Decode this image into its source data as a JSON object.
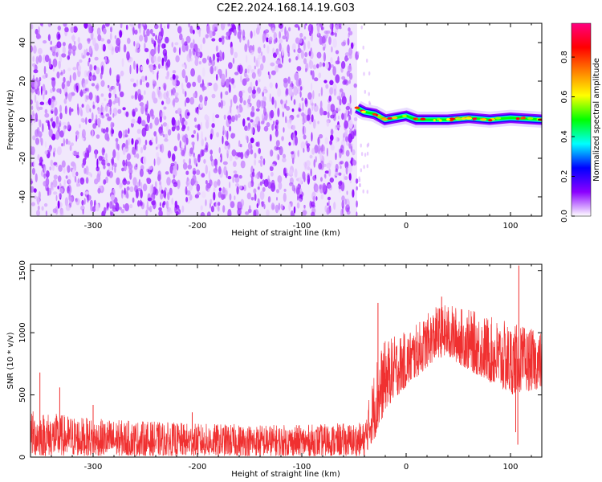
{
  "title": "C2E2.2024.168.14.19.G03",
  "chart_data": [
    {
      "type": "heatmap",
      "xlabel": "Height of straight line (km)",
      "ylabel": "Frequency (Hz)",
      "xlim": [
        -360,
        130
      ],
      "ylim": [
        -50,
        50
      ],
      "x_ticks": [
        -300,
        -200,
        -100,
        0,
        100
      ],
      "y_ticks": [
        -40,
        -20,
        0,
        20,
        40
      ],
      "noise_region_x": [
        -360,
        -47
      ],
      "signal_region_x": [
        -47,
        130
      ],
      "colorbar": {
        "label": "Normalized spectral amplitude",
        "range": [
          0.0,
          0.97
        ],
        "ticks": [
          0.0,
          0.2,
          0.4,
          0.6,
          0.8
        ],
        "colors": [
          "#ffffff",
          "#8b00ff",
          "#0000ff",
          "#00ffff",
          "#00ff00",
          "#ffff00",
          "#ff8000",
          "#ff0000",
          "#ff0080"
        ]
      },
      "signal_trace": {
        "x": [
          -47,
          -40,
          -30,
          -20,
          -10,
          0,
          10,
          20,
          40,
          60,
          80,
          100,
          130
        ],
        "frequency": [
          6,
          4,
          3,
          0,
          1,
          2,
          0,
          0,
          0,
          1,
          0,
          1,
          0
        ]
      }
    },
    {
      "type": "line",
      "xlabel": "Height of straight line (km)",
      "ylabel": "SNR (10 * v/v)",
      "xlim": [
        -360,
        130
      ],
      "ylim": [
        0,
        1550
      ],
      "x_ticks": [
        -300,
        -200,
        -100,
        0,
        100
      ],
      "y_ticks": [
        0,
        500,
        1000,
        1500
      ],
      "color": "#f03030",
      "series": [
        {
          "envelope_x": [
            -360,
            -300,
            -200,
            -100,
            -40,
            -28,
            -20,
            -10,
            0,
            10,
            20,
            30,
            40,
            60,
            80,
            100,
            110,
            130
          ],
          "low": [
            10,
            10,
            10,
            10,
            10,
            180,
            380,
            480,
            560,
            640,
            720,
            800,
            800,
            700,
            600,
            500,
            520,
            550
          ],
          "high": [
            380,
            310,
            270,
            260,
            280,
            820,
            940,
            980,
            1010,
            1070,
            1150,
            1220,
            1230,
            1190,
            1130,
            1080,
            1060,
            1000
          ],
          "spikes": [
            {
              "x": -351,
              "y": 680
            },
            {
              "x": -332,
              "y": 560
            },
            {
              "x": -300,
              "y": 420
            },
            {
              "x": -205,
              "y": 360
            },
            {
              "x": -27,
              "y": 1240
            },
            {
              "x": 34,
              "y": 1290
            },
            {
              "x": 108,
              "y": 1540
            },
            {
              "x": 107,
              "y": 100
            },
            {
              "x": 105,
              "y": 200
            }
          ]
        }
      ]
    }
  ]
}
